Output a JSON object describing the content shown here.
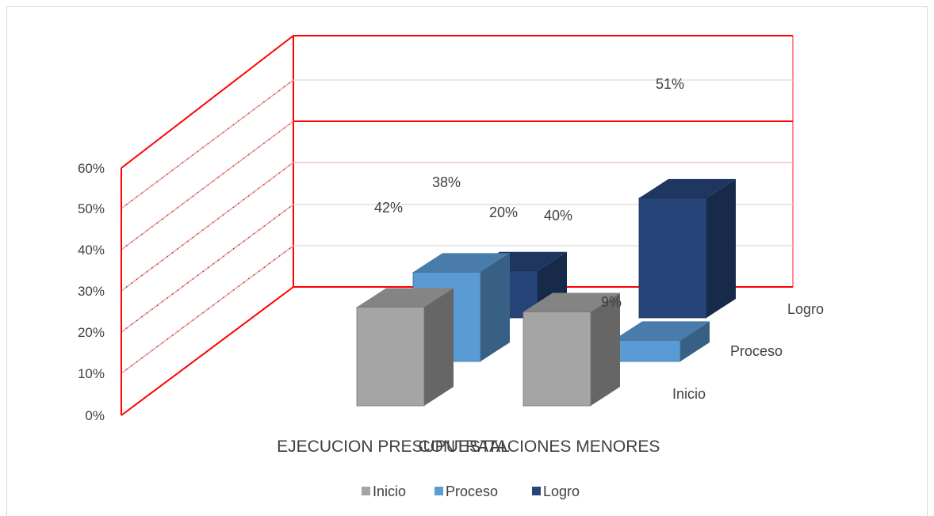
{
  "chart_data": {
    "type": "bar",
    "categories": [
      "EJECUCION PRESUPUESTAL",
      "CONTRATACIONES MENORES"
    ],
    "series": [
      {
        "name": "Inicio",
        "values": [
          42,
          40
        ],
        "color": "#a5a5a5"
      },
      {
        "name": "Proceso",
        "values": [
          38,
          9
        ],
        "color": "#5b9bd5"
      },
      {
        "name": "Logro",
        "values": [
          20,
          51
        ],
        "color": "#264478"
      }
    ],
    "y_ticks": [
      "0%",
      "10%",
      "20%",
      "30%",
      "40%",
      "50%",
      "60%"
    ],
    "ylim": [
      0,
      60
    ],
    "data_labels": [
      [
        "42%",
        "40%"
      ],
      [
        "38%",
        "9%"
      ],
      [
        "20%",
        "51%"
      ]
    ],
    "depth_labels": [
      "Inicio",
      "Proceso",
      "Logro"
    ],
    "legend": {
      "position": "bottom",
      "entries": [
        "Inicio",
        "Proceso",
        "Logro"
      ]
    },
    "grid": true,
    "wall_color": "#ff0000",
    "style": "3d-column"
  }
}
